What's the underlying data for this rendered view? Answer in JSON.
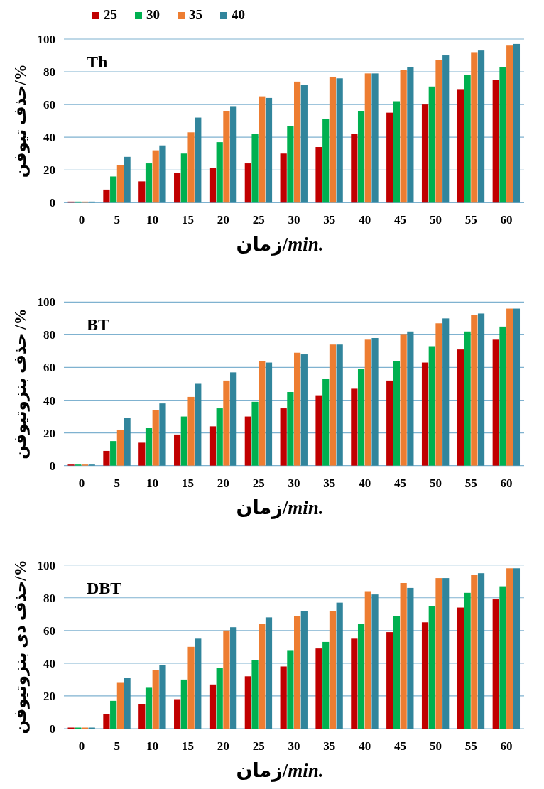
{
  "chart_data": [
    {
      "type": "bar",
      "title": "Th",
      "xlabel": "زمان/min.",
      "ylabel": "حذف تیوفن/%",
      "categories": [
        "0",
        "5",
        "10",
        "15",
        "20",
        "25",
        "30",
        "35",
        "40",
        "45",
        "50",
        "55",
        "60"
      ],
      "ylim": [
        0,
        100
      ],
      "yticks": [
        0,
        20,
        40,
        60,
        80,
        100
      ],
      "grid": "y",
      "legend": "top left",
      "series": [
        {
          "name": "25",
          "color": "#c00000",
          "values": [
            0,
            8,
            13,
            18,
            21,
            24,
            30,
            34,
            42,
            55,
            60,
            69,
            75
          ]
        },
        {
          "name": "30",
          "color": "#00b050",
          "values": [
            0,
            16,
            24,
            30,
            37,
            42,
            47,
            51,
            56,
            62,
            71,
            78,
            83
          ]
        },
        {
          "name": "35",
          "color": "#ed7d31",
          "values": [
            0,
            23,
            32,
            43,
            56,
            65,
            74,
            77,
            79,
            81,
            87,
            92,
            96
          ]
        },
        {
          "name": "40",
          "color": "#31859c",
          "values": [
            0,
            28,
            35,
            52,
            59,
            64,
            72,
            76,
            79,
            83,
            90,
            93,
            97
          ]
        }
      ]
    },
    {
      "type": "bar",
      "title": "BT",
      "xlabel": "زمان/min.",
      "ylabel": "حذف بنزوتیوفن /%",
      "categories": [
        "0",
        "5",
        "10",
        "15",
        "20",
        "25",
        "30",
        "35",
        "40",
        "45",
        "50",
        "55",
        "60"
      ],
      "ylim": [
        0,
        100
      ],
      "yticks": [
        0,
        20,
        40,
        60,
        80,
        100
      ],
      "grid": "y",
      "series": [
        {
          "color": "#c00000",
          "values": [
            0,
            9,
            14,
            19,
            24,
            30,
            35,
            43,
            47,
            52,
            63,
            71,
            77
          ]
        },
        {
          "color": "#00b050",
          "values": [
            0,
            15,
            23,
            30,
            35,
            39,
            45,
            53,
            59,
            64,
            73,
            82,
            85
          ]
        },
        {
          "color": "#ed7d31",
          "values": [
            0,
            22,
            34,
            42,
            52,
            64,
            69,
            74,
            77,
            80,
            87,
            92,
            96
          ]
        },
        {
          "color": "#31859c",
          "values": [
            0,
            29,
            38,
            50,
            57,
            63,
            68,
            74,
            78,
            82,
            90,
            93,
            96
          ]
        }
      ]
    },
    {
      "type": "bar",
      "title": "DBT",
      "xlabel": "زمان/min.",
      "ylabel": "حذف دی بنزوتیوفن/%",
      "categories": [
        "0",
        "5",
        "10",
        "15",
        "20",
        "25",
        "30",
        "35",
        "40",
        "45",
        "50",
        "55",
        "60"
      ],
      "ylim": [
        0,
        100
      ],
      "yticks": [
        0,
        20,
        40,
        60,
        80,
        100
      ],
      "grid": "y",
      "series": [
        {
          "color": "#c00000",
          "values": [
            0,
            9,
            15,
            18,
            27,
            32,
            38,
            49,
            55,
            59,
            65,
            74,
            79
          ]
        },
        {
          "color": "#00b050",
          "values": [
            0,
            17,
            25,
            30,
            37,
            42,
            48,
            53,
            64,
            69,
            75,
            83,
            87
          ]
        },
        {
          "color": "#ed7d31",
          "values": [
            0,
            28,
            36,
            50,
            60,
            64,
            69,
            72,
            84,
            89,
            92,
            94,
            98
          ]
        },
        {
          "color": "#31859c",
          "values": [
            0,
            31,
            39,
            55,
            62,
            68,
            72,
            77,
            82,
            86,
            92,
            95,
            98
          ]
        }
      ]
    }
  ]
}
